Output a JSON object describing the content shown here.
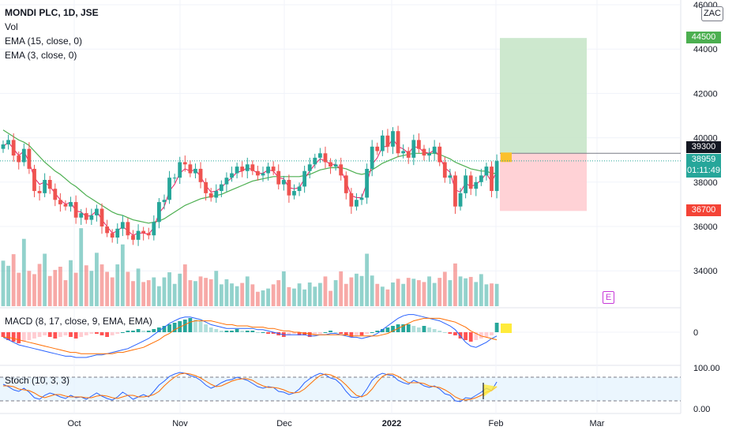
{
  "header": {
    "title": "MONDI PLC, 1D, JSE",
    "indicators": [
      "Vol",
      "EMA (15, close, 0)",
      "EMA (3, close, 0)"
    ],
    "currency_button": "ZAC"
  },
  "price_badges": {
    "target": "44500",
    "entry": "39300",
    "last": "38959",
    "countdown": "01:11:49",
    "stop": "36700"
  },
  "earnings_marker": "E",
  "macd_label": "MACD (8, 17, close, 9, EMA, EMA)",
  "macd_tick": "0",
  "stoch_label": "Stoch (10, 3, 3)",
  "stoch_ticks": [
    "100.00",
    "0.00"
  ],
  "colors": {
    "up": "#26a69a",
    "down": "#ef5350",
    "ema15": "#4caf50",
    "ema3": "#e91e63",
    "target_zone": "#c8e6c9",
    "stop_zone": "#ffcdd2",
    "badge_green": "#4caf50",
    "badge_red": "#f44336",
    "badge_last": "#26a69a",
    "macd": "#2962ff",
    "signal": "#ff6d00",
    "stoch_k": "#2962ff",
    "stoch_d": "#ff6d00"
  },
  "chart_data": {
    "type": "candlestick",
    "title": "MONDI PLC, 1D, JSE",
    "x_tick_labels": [
      "Oct",
      "Nov",
      "Dec",
      "2022",
      "Feb",
      "Mar"
    ],
    "price_ticks": [
      "46000",
      "44000",
      "42000",
      "40000",
      "38000",
      "36000",
      "34000"
    ],
    "ylim": [
      32800,
      46500
    ],
    "position": {
      "entry": 39300,
      "target": 44500,
      "stop": 36700
    },
    "current_price": 38959,
    "candles_close": [
      39700,
      39900,
      39200,
      38900,
      39500,
      38600,
      37600,
      37500,
      38100,
      37700,
      37200,
      37000,
      36900,
      37100,
      36400,
      36600,
      36300,
      36500,
      36800,
      36000,
      35700,
      35500,
      35900,
      36200,
      35600,
      35400,
      35800,
      35700,
      35600,
      36200,
      37100,
      37200,
      38200,
      38200,
      38900,
      38800,
      38400,
      38600,
      38000,
      37500,
      37300,
      37600,
      37900,
      38200,
      38400,
      38700,
      38500,
      38800,
      38500,
      38300,
      38400,
      38700,
      38500,
      37900,
      38100,
      37400,
      37600,
      37800,
      38500,
      38800,
      39100,
      39300,
      38900,
      38700,
      38800,
      38300,
      37500,
      36900,
      37200,
      37300,
      38600,
      39600,
      39400,
      40100,
      39600,
      40300,
      39300,
      39400,
      39100,
      39900,
      39500,
      39200,
      39300,
      39600,
      38900,
      38200,
      38300,
      36900,
      37500,
      38300,
      37700,
      38000,
      38300,
      38700,
      37600,
      38950
    ],
    "volume": [
      980,
      870,
      1120,
      720,
      1450,
      760,
      690,
      910,
      1130,
      650,
      780,
      850,
      560,
      990,
      720,
      1680,
      880,
      760,
      1150,
      900,
      740,
      620,
      900,
      1330,
      740,
      540,
      810,
      520,
      560,
      620,
      430,
      620,
      730,
      480,
      700,
      900,
      560,
      540,
      640,
      610,
      580,
      760,
      470,
      580,
      490,
      430,
      500,
      640,
      470,
      310,
      340,
      380,
      470,
      560,
      750,
      410,
      380,
      490,
      360,
      510,
      420,
      500,
      640,
      330,
      560,
      750,
      480,
      620,
      700,
      650,
      1130,
      660,
      480,
      420,
      360,
      510,
      590,
      480,
      610,
      590,
      560,
      520,
      640,
      500,
      610,
      740,
      560,
      920,
      640,
      600,
      630,
      520,
      690,
      470,
      490,
      480
    ],
    "ema15": [
      40350,
      40200,
      40050,
      39900,
      39800,
      39650,
      39400,
      39150,
      38900,
      38700,
      38500,
      38350,
      38150,
      37950,
      37800,
      37600,
      37400,
      37250,
      37100,
      36950,
      36800,
      36650,
      36550,
      36500,
      36400,
      36300,
      36250,
      36200,
      36150,
      36200,
      36250,
      36350,
      36500,
      36650,
      36800,
      36950,
      37050,
      37150,
      37250,
      37300,
      37350,
      37400,
      37450,
      37550,
      37650,
      37750,
      37850,
      37950,
      38050,
      38100,
      38150,
      38200,
      38250,
      38250,
      38250,
      38250,
      38250,
      38250,
      38300,
      38350,
      38450,
      38550,
      38600,
      38650,
      38650,
      38650,
      38600,
      38500,
      38400,
      38350,
      38400,
      38550,
      38700,
      38850,
      38950,
      39050,
      39150,
      39200,
      39250,
      39300,
      39300,
      39300,
      39300,
      39300,
      39250,
      39150,
      39050,
      38900,
      38800,
      38700,
      38600,
      38550,
      38500,
      38500,
      38400,
      38400
    ],
    "ema3": [
      39600,
      39800,
      39500,
      39200,
      39400,
      38900,
      38200,
      37900,
      38000,
      37800,
      37500,
      37200,
      37000,
      37100,
      36700,
      36650,
      36450,
      36500,
      36700,
      36300,
      36000,
      35700,
      35800,
      36000,
      35800,
      35600,
      35700,
      35700,
      35650,
      35950,
      36600,
      36900,
      37600,
      37900,
      38400,
      38600,
      38500,
      38550,
      38250,
      37850,
      37550,
      37600,
      37750,
      38000,
      38200,
      38450,
      38500,
      38650,
      38550,
      38400,
      38400,
      38550,
      38500,
      38200,
      38150,
      37750,
      37700,
      37750,
      38150,
      38500,
      38800,
      39050,
      38950,
      38800,
      38800,
      38550,
      38000,
      37400,
      37300,
      37300,
      37950,
      38800,
      39100,
      39600,
      39600,
      39950,
      39600,
      39500,
      39300,
      39600,
      39550,
      39350,
      39300,
      39450,
      39150,
      38650,
      38450,
      37650,
      37550,
      37950,
      37800,
      37900,
      38100,
      38400,
      38000,
      38500
    ],
    "macd_hist": [
      -3,
      -5,
      -6,
      -7,
      -6,
      -5,
      -4,
      -3,
      -2,
      -3,
      -4,
      -3,
      -2,
      -3,
      -4,
      -3,
      -2,
      -1,
      -1,
      -2,
      -3,
      -2,
      -1,
      0,
      1,
      1,
      2,
      1,
      1,
      2,
      3,
      4,
      5,
      6,
      7,
      8,
      9,
      8,
      7,
      5,
      3,
      2,
      1,
      1,
      1,
      2,
      1,
      1,
      1,
      0,
      0,
      -1,
      -1,
      -2,
      -3,
      -2,
      -1,
      -2,
      -2,
      -3,
      -2,
      -1,
      0,
      1,
      0,
      -1,
      -2,
      -3,
      -2,
      -2,
      -1,
      0,
      1,
      2,
      3,
      4,
      5,
      5,
      5,
      4,
      3,
      4,
      3,
      2,
      1,
      0,
      -1,
      -2,
      -4,
      -5,
      -6,
      -5,
      -4,
      -3,
      -2,
      6
    ],
    "macd": [
      -4,
      -6,
      -8,
      -10,
      -11,
      -12,
      -13,
      -14,
      -15,
      -16,
      -17,
      -18,
      -19,
      -19,
      -20,
      -20,
      -20,
      -19,
      -18,
      -18,
      -17,
      -16,
      -15,
      -14,
      -13,
      -11,
      -9,
      -7,
      -5,
      -2,
      1,
      4,
      7,
      9,
      11,
      12,
      12,
      11,
      10,
      8,
      6,
      5,
      4,
      3,
      3,
      3,
      3,
      3,
      3,
      2,
      2,
      1,
      0,
      -1,
      -2,
      -2,
      -2,
      -2,
      -2,
      -3,
      -3,
      -2,
      -2,
      -1,
      -1,
      -2,
      -3,
      -4,
      -4,
      -5,
      -4,
      -3,
      -1,
      2,
      5,
      8,
      11,
      13,
      14,
      14,
      13,
      12,
      11,
      10,
      9,
      7,
      5,
      2,
      -3,
      -8,
      -11,
      -12,
      -10,
      -8,
      -5,
      -3
    ],
    "signal": [
      -4,
      -4,
      -5,
      -6,
      -7,
      -8,
      -9,
      -10,
      -11,
      -12,
      -13,
      -14,
      -15,
      -16,
      -16,
      -17,
      -17,
      -17,
      -17,
      -17,
      -17,
      -17,
      -16,
      -16,
      -15,
      -14,
      -13,
      -12,
      -10,
      -8,
      -6,
      -3,
      -1,
      2,
      4,
      6,
      8,
      9,
      9,
      9,
      9,
      8,
      7,
      6,
      6,
      5,
      5,
      5,
      4,
      4,
      4,
      3,
      3,
      2,
      1,
      1,
      0,
      0,
      -1,
      -1,
      -2,
      -2,
      -2,
      -2,
      -2,
      -2,
      -2,
      -3,
      -3,
      -3,
      -3,
      -3,
      -3,
      -2,
      -1,
      1,
      3,
      5,
      7,
      9,
      10,
      11,
      11,
      11,
      11,
      10,
      9,
      8,
      6,
      4,
      1,
      -1,
      -3,
      -4,
      -5,
      -6
    ],
    "stoch_k": [
      62,
      56,
      48,
      44,
      52,
      42,
      28,
      24,
      34,
      40,
      36,
      30,
      26,
      34,
      28,
      30,
      24,
      32,
      40,
      32,
      26,
      22,
      30,
      42,
      34,
      24,
      30,
      36,
      30,
      44,
      60,
      70,
      82,
      88,
      92,
      90,
      84,
      80,
      72,
      60,
      52,
      58,
      66,
      72,
      74,
      80,
      76,
      72,
      64,
      56,
      52,
      56,
      54,
      44,
      42,
      36,
      40,
      50,
      66,
      76,
      84,
      90,
      86,
      78,
      74,
      62,
      44,
      30,
      28,
      32,
      50,
      72,
      84,
      90,
      86,
      84,
      72,
      66,
      62,
      72,
      66,
      58,
      54,
      58,
      50,
      38,
      34,
      20,
      18,
      28,
      26,
      34,
      42,
      52,
      46,
      68
    ],
    "stoch_d": [
      58,
      58,
      56,
      50,
      48,
      46,
      40,
      32,
      28,
      32,
      36,
      36,
      32,
      30,
      30,
      30,
      28,
      28,
      32,
      34,
      32,
      28,
      26,
      30,
      34,
      34,
      30,
      30,
      32,
      36,
      44,
      58,
      70,
      80,
      88,
      90,
      88,
      84,
      78,
      70,
      62,
      56,
      58,
      64,
      70,
      74,
      76,
      76,
      72,
      64,
      58,
      54,
      54,
      52,
      48,
      42,
      40,
      42,
      50,
      62,
      74,
      84,
      88,
      86,
      80,
      72,
      60,
      46,
      34,
      30,
      36,
      50,
      68,
      82,
      88,
      88,
      82,
      74,
      66,
      66,
      66,
      64,
      58,
      56,
      54,
      48,
      40,
      30,
      24,
      22,
      24,
      28,
      34,
      42,
      46,
      56
    ],
    "stoch_bands": [
      80,
      20
    ]
  }
}
